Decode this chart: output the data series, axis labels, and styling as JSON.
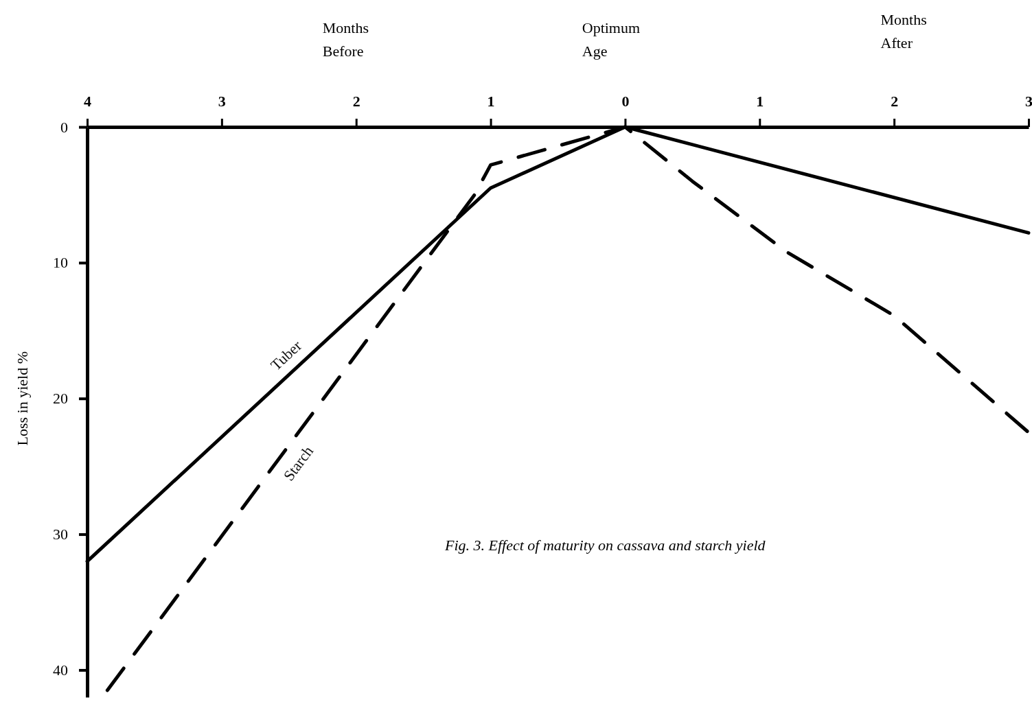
{
  "chart_data": {
    "type": "line",
    "title": "Fig. 3.  Effect of maturity on cassava and starch yield",
    "ylabel": "Loss in yield %",
    "annotations": [
      "Months\nBefore",
      "Optimum\nAge",
      "Months\nAfter"
    ],
    "xlim": [
      -4,
      3
    ],
    "xticks": [
      {
        "value": -4,
        "label": "4"
      },
      {
        "value": -3,
        "label": "3"
      },
      {
        "value": -2,
        "label": "2"
      },
      {
        "value": -1,
        "label": "1"
      },
      0,
      1,
      2,
      3
    ],
    "ylim": [
      42,
      0
    ],
    "yticks": [
      0,
      10,
      20,
      30,
      40
    ],
    "grid": false,
    "marker": "none",
    "series": [
      {
        "name": "Tuber",
        "color": "#000000",
        "line_style": "solid",
        "x": [
          -4,
          -1,
          0,
          3
        ],
        "values": [
          32,
          4.5,
          0,
          7.8
        ]
      },
      {
        "name": "Starch",
        "color": "#000000",
        "line_style": "dashed",
        "x": [
          -3.85,
          -1.12,
          -1,
          0,
          0.5,
          1.2,
          2,
          2.5,
          3
        ],
        "values": [
          41.5,
          5,
          2.8,
          0,
          4,
          9.2,
          13.9,
          18.2,
          22.5
        ]
      }
    ]
  }
}
